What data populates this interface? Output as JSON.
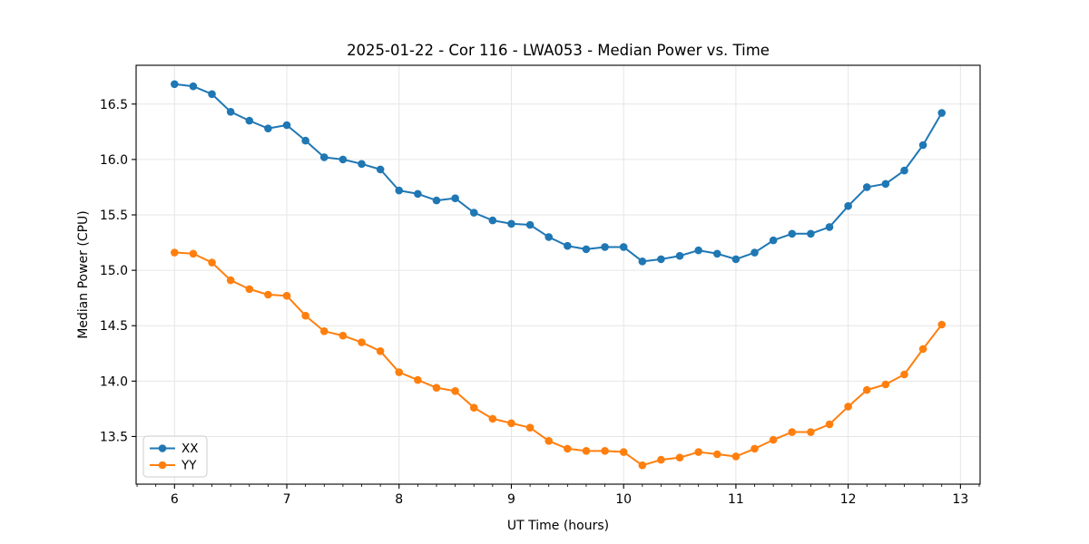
{
  "window": {
    "background_color": "#ffffff"
  },
  "chart_data": {
    "type": "line",
    "title": "2025-01-22 - Cor 116 - LWA053 - Median Power vs. Time",
    "xlabel": "UT Time (hours)",
    "ylabel": "Median Power (CPU)",
    "xlim": [
      5.658,
      13.175
    ],
    "ylim": [
      13.07,
      16.85
    ],
    "grid": true,
    "grid_color": "#e6e6e6",
    "spine_color": "#000000",
    "x_major_ticks": [
      6,
      7,
      8,
      9,
      10,
      11,
      12,
      13
    ],
    "x_minor_tick_interval_hours": 0.166667,
    "y_major_ticks": [
      13.5,
      14.0,
      14.5,
      15.0,
      15.5,
      16.0,
      16.5
    ],
    "legend_position": "lower-left",
    "legend_frame_color": "#cccccc",
    "x": [
      6.0,
      6.1667,
      6.3333,
      6.5,
      6.6667,
      6.8333,
      7.0,
      7.1667,
      7.3333,
      7.5,
      7.6667,
      7.8333,
      8.0,
      8.1667,
      8.3333,
      8.5,
      8.6667,
      8.8333,
      9.0,
      9.1667,
      9.3333,
      9.5,
      9.6667,
      9.8333,
      10.0,
      10.1667,
      10.3333,
      10.5,
      10.6667,
      10.8333,
      11.0,
      11.1667,
      11.3333,
      11.5,
      11.6667,
      11.8333,
      12.0,
      12.1667,
      12.3333,
      12.5,
      12.6667,
      12.8333
    ],
    "series": [
      {
        "name": "XX",
        "color": "#1f77b4",
        "values": [
          16.68,
          16.66,
          16.59,
          16.43,
          16.35,
          16.28,
          16.31,
          16.17,
          16.02,
          16.0,
          15.96,
          15.91,
          15.72,
          15.69,
          15.63,
          15.65,
          15.52,
          15.45,
          15.42,
          15.41,
          15.3,
          15.22,
          15.19,
          15.21,
          15.21,
          15.08,
          15.1,
          15.13,
          15.18,
          15.15,
          15.1,
          15.16,
          15.27,
          15.33,
          15.33,
          15.39,
          15.58,
          15.75,
          15.78,
          15.9,
          16.13,
          16.42
        ]
      },
      {
        "name": "YY",
        "color": "#ff7f0e",
        "values": [
          15.16,
          15.15,
          15.07,
          14.91,
          14.83,
          14.78,
          14.77,
          14.59,
          14.45,
          14.41,
          14.35,
          14.27,
          14.08,
          14.01,
          13.94,
          13.91,
          13.76,
          13.66,
          13.62,
          13.58,
          13.46,
          13.39,
          13.37,
          13.37,
          13.36,
          13.24,
          13.29,
          13.31,
          13.36,
          13.34,
          13.32,
          13.39,
          13.47,
          13.54,
          13.54,
          13.61,
          13.77,
          13.92,
          13.97,
          14.06,
          14.29,
          14.51
        ]
      }
    ]
  }
}
